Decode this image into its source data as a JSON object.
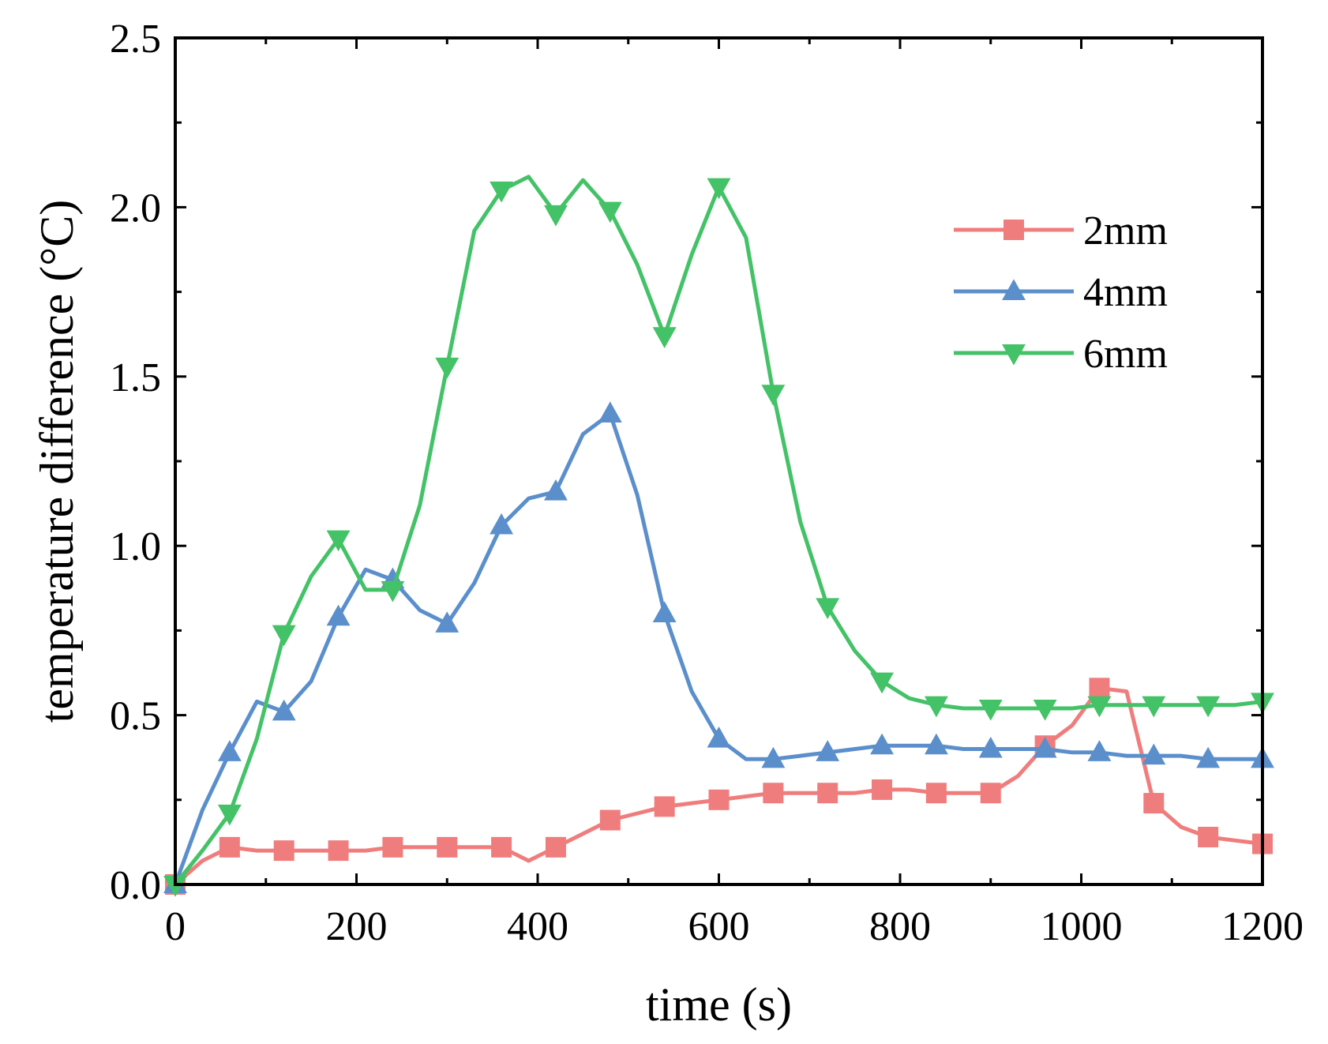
{
  "chart_data": {
    "type": "line",
    "title": "",
    "xlabel": "time (s)",
    "ylabel": "temperature difference (°C)",
    "xlim": [
      0,
      1200
    ],
    "ylim": [
      0,
      2.5
    ],
    "xticks": [
      0,
      200,
      400,
      600,
      800,
      1000,
      1200
    ],
    "yticks": [
      0.0,
      0.5,
      1.0,
      1.5,
      2.0,
      2.5
    ],
    "xtick_labels": [
      "0",
      "200",
      "400",
      "600",
      "800",
      "1000",
      "1200"
    ],
    "ytick_labels": [
      "0.0",
      "0.5",
      "1.0",
      "1.5",
      "2.0",
      "2.5"
    ],
    "grid": false,
    "legend_position": "top-right",
    "series": [
      {
        "name": "2mm",
        "color": "#f07d7d",
        "marker": "square",
        "x": [
          0,
          30,
          60,
          90,
          120,
          150,
          180,
          210,
          240,
          270,
          300,
          330,
          360,
          390,
          420,
          450,
          480,
          510,
          540,
          570,
          600,
          630,
          660,
          690,
          720,
          750,
          780,
          810,
          840,
          870,
          900,
          930,
          960,
          990,
          1020,
          1050,
          1080,
          1110,
          1140,
          1170,
          1200
        ],
        "values": [
          0,
          0.07,
          0.11,
          0.1,
          0.1,
          0.1,
          0.1,
          0.1,
          0.11,
          0.11,
          0.11,
          0.11,
          0.11,
          0.07,
          0.11,
          0.15,
          0.19,
          0.21,
          0.23,
          0.24,
          0.25,
          0.26,
          0.27,
          0.27,
          0.27,
          0.27,
          0.28,
          0.28,
          0.27,
          0.27,
          0.27,
          0.32,
          0.41,
          0.47,
          0.58,
          0.57,
          0.24,
          0.17,
          0.14,
          0.13,
          0.12
        ],
        "marker_x": [
          0,
          60,
          120,
          180,
          240,
          300,
          360,
          420,
          480,
          540,
          600,
          660,
          720,
          780,
          840,
          900,
          960,
          1020,
          1080,
          1140,
          1200
        ],
        "marker_values": [
          0,
          0.11,
          0.1,
          0.1,
          0.11,
          0.11,
          0.11,
          0.11,
          0.19,
          0.23,
          0.25,
          0.27,
          0.27,
          0.28,
          0.27,
          0.27,
          0.41,
          0.58,
          0.24,
          0.14,
          0.12
        ]
      },
      {
        "name": "4mm",
        "color": "#5b8fcc",
        "marker": "triangle-up",
        "x": [
          0,
          30,
          60,
          90,
          120,
          150,
          180,
          210,
          240,
          270,
          300,
          330,
          360,
          390,
          420,
          450,
          480,
          510,
          540,
          570,
          600,
          630,
          660,
          690,
          720,
          750,
          780,
          810,
          840,
          870,
          900,
          930,
          960,
          990,
          1020,
          1050,
          1080,
          1110,
          1140,
          1170,
          1200
        ],
        "values": [
          0,
          0.22,
          0.39,
          0.54,
          0.51,
          0.6,
          0.79,
          0.93,
          0.9,
          0.81,
          0.77,
          0.89,
          1.06,
          1.14,
          1.16,
          1.33,
          1.39,
          1.15,
          0.8,
          0.57,
          0.43,
          0.37,
          0.37,
          0.38,
          0.39,
          0.4,
          0.41,
          0.41,
          0.41,
          0.4,
          0.4,
          0.4,
          0.4,
          0.39,
          0.39,
          0.38,
          0.38,
          0.38,
          0.37,
          0.37,
          0.37
        ],
        "marker_x": [
          0,
          60,
          120,
          180,
          240,
          300,
          360,
          420,
          480,
          540,
          600,
          660,
          720,
          780,
          840,
          900,
          960,
          1020,
          1080,
          1140,
          1200
        ],
        "marker_values": [
          0,
          0.39,
          0.51,
          0.79,
          0.9,
          0.77,
          1.06,
          1.16,
          1.39,
          0.8,
          0.43,
          0.37,
          0.39,
          0.41,
          0.41,
          0.4,
          0.4,
          0.39,
          0.38,
          0.37,
          0.37
        ]
      },
      {
        "name": "6mm",
        "color": "#44c267",
        "marker": "triangle-down",
        "x": [
          0,
          30,
          60,
          90,
          120,
          150,
          180,
          210,
          240,
          270,
          300,
          330,
          360,
          390,
          420,
          450,
          480,
          510,
          540,
          570,
          600,
          630,
          660,
          690,
          720,
          750,
          780,
          810,
          840,
          870,
          900,
          930,
          960,
          990,
          1020,
          1050,
          1080,
          1110,
          1140,
          1170,
          1200
        ],
        "values": [
          0,
          0.1,
          0.21,
          0.43,
          0.74,
          0.91,
          1.02,
          0.87,
          0.87,
          1.12,
          1.53,
          1.93,
          2.05,
          2.09,
          1.98,
          2.08,
          1.99,
          1.83,
          1.62,
          1.86,
          2.06,
          1.91,
          1.45,
          1.07,
          0.82,
          0.69,
          0.6,
          0.55,
          0.53,
          0.52,
          0.52,
          0.52,
          0.52,
          0.52,
          0.53,
          0.53,
          0.53,
          0.53,
          0.53,
          0.53,
          0.54
        ],
        "marker_x": [
          0,
          60,
          120,
          180,
          240,
          300,
          360,
          420,
          480,
          540,
          600,
          660,
          720,
          780,
          840,
          900,
          960,
          1020,
          1080,
          1140,
          1200
        ],
        "marker_values": [
          0,
          0.21,
          0.74,
          1.02,
          0.87,
          1.53,
          2.05,
          1.98,
          1.99,
          1.62,
          2.06,
          1.45,
          0.82,
          0.6,
          0.53,
          0.52,
          0.52,
          0.53,
          0.53,
          0.53,
          0.54
        ]
      }
    ]
  }
}
